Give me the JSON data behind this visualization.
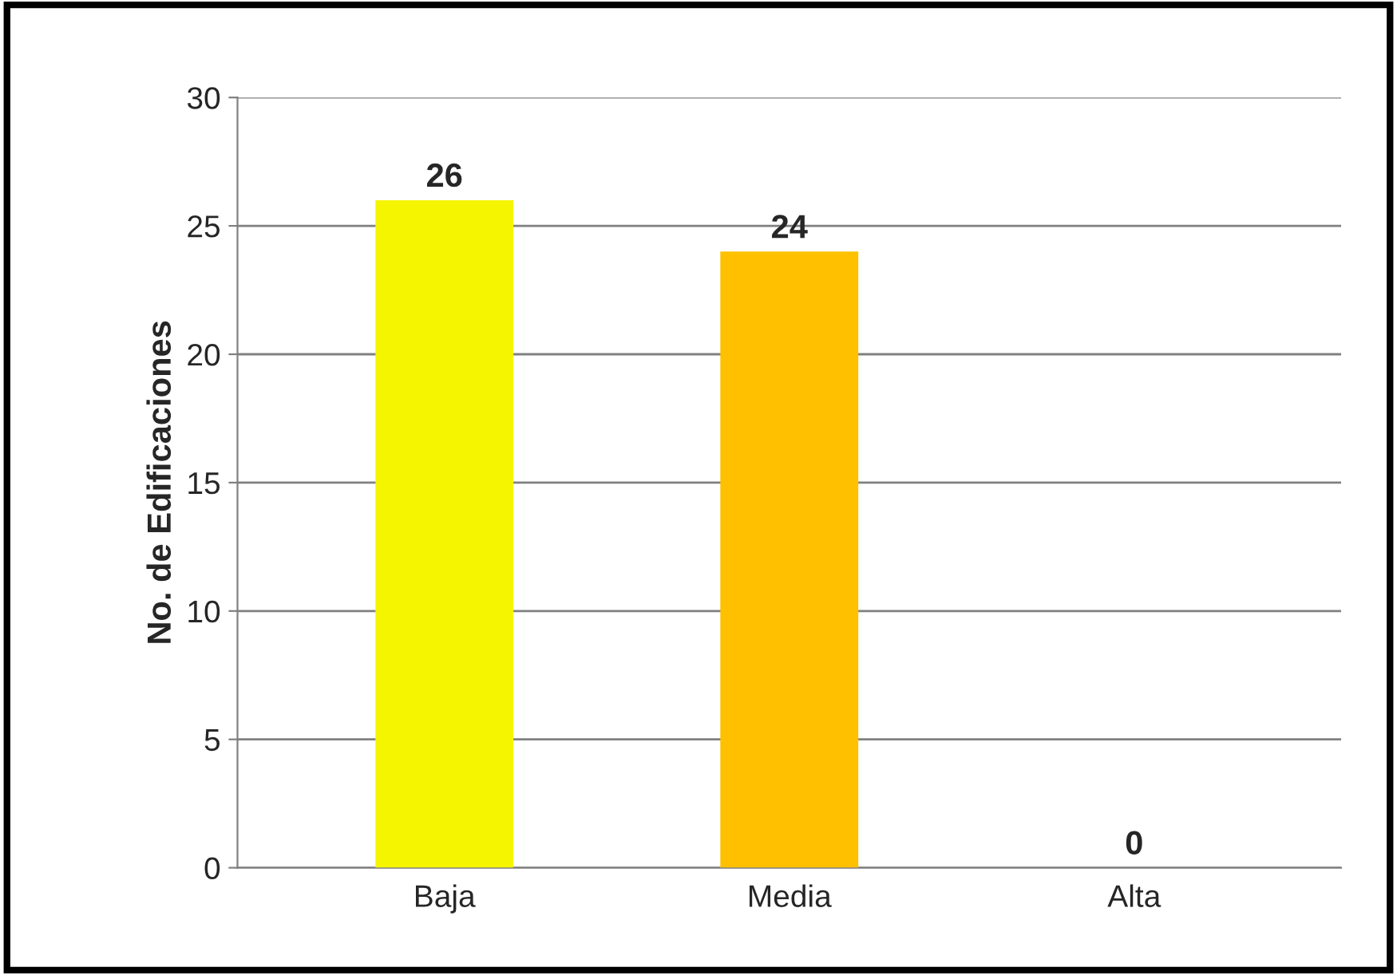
{
  "chart_data": {
    "type": "bar",
    "ylabel": "No. de Edificaciones",
    "categories": [
      "Baja",
      "Media",
      "Alta"
    ],
    "values": [
      26,
      24,
      0
    ],
    "colors": [
      "#f5f500",
      "#ffc000",
      "#c00000"
    ],
    "ylim": [
      0,
      30
    ],
    "yticks": [
      0,
      5,
      10,
      15,
      20,
      25,
      30
    ],
    "grid": "y",
    "data_labels": true
  }
}
